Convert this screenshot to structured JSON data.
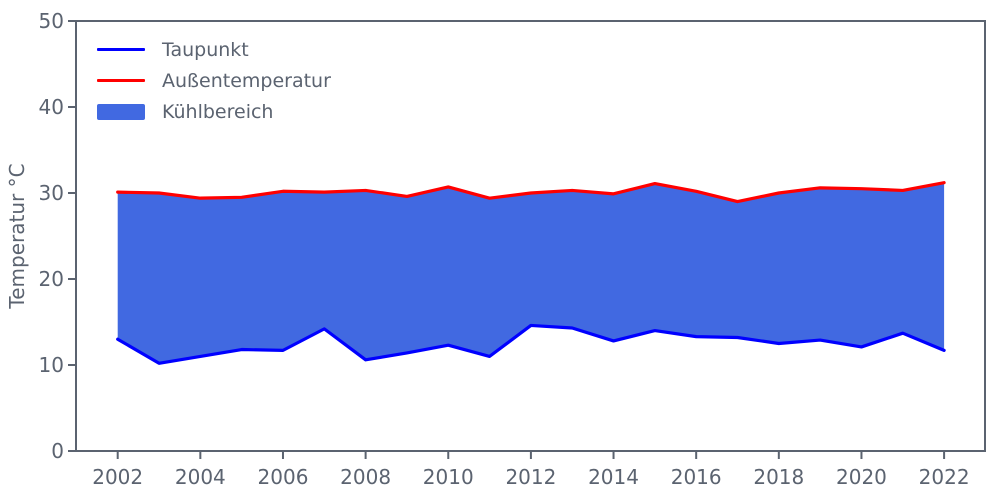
{
  "figure": {
    "background": "#ffffff",
    "axis_color": "#5b6370"
  },
  "legend": {
    "position": "upper-left",
    "items": [
      {
        "label": "Taupunkt",
        "type": "line",
        "color": "#0000ff"
      },
      {
        "label": "Außentemperatur",
        "type": "line",
        "color": "#ff0000"
      },
      {
        "label": "Kühlbereich",
        "type": "patch",
        "color": "#4169e1"
      }
    ]
  },
  "chart_data": {
    "type": "area",
    "title": "",
    "xlabel": "",
    "ylabel": "Temperatur °C",
    "ylim": [
      0,
      50
    ],
    "xlim": [
      2002,
      2022
    ],
    "grid": false,
    "legend_position": "upper-left",
    "x": [
      2002,
      2003,
      2004,
      2005,
      2006,
      2007,
      2008,
      2009,
      2010,
      2011,
      2012,
      2013,
      2014,
      2015,
      2016,
      2017,
      2018,
      2019,
      2020,
      2021,
      2022
    ],
    "xticks": [
      "2002",
      "2004",
      "2006",
      "2008",
      "2010",
      "2012",
      "2014",
      "2016",
      "2018",
      "2020",
      "2022"
    ],
    "yticks": [
      "0",
      "10",
      "20",
      "30",
      "40",
      "50"
    ],
    "series": [
      {
        "name": "Taupunkt",
        "color": "#0000ff",
        "values": [
          13.0,
          10.2,
          11.0,
          11.8,
          11.7,
          14.2,
          10.6,
          11.4,
          12.3,
          11.0,
          14.6,
          14.3,
          12.8,
          14.0,
          13.3,
          13.2,
          12.5,
          12.9,
          12.1,
          13.7,
          11.7
        ]
      },
      {
        "name": "Außentemperatur",
        "color": "#ff0000",
        "values": [
          30.1,
          30.0,
          29.4,
          29.5,
          30.2,
          30.1,
          30.3,
          29.6,
          30.7,
          29.4,
          30.0,
          30.3,
          29.9,
          31.1,
          30.2,
          29.0,
          30.0,
          30.6,
          30.5,
          30.3,
          31.2
        ]
      }
    ],
    "fill_between": {
      "name": "Kühlbereich",
      "color": "#4169e1",
      "lower_series": "Taupunkt",
      "upper_series": "Außentemperatur"
    }
  }
}
